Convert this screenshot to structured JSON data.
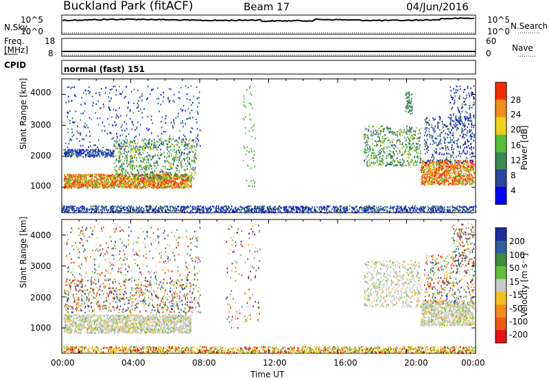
{
  "header": {
    "station": "Buckland Park (fitACF)",
    "beam": "Beam 17",
    "date": "04/Jun/2016"
  },
  "noise_panel": {
    "left_label": "N.Sky",
    "right_label": "N.Search",
    "left_ticks": [
      "10^5",
      "10^0"
    ],
    "right_ticks": [
      "10^5",
      "10^0"
    ]
  },
  "freq_panel": {
    "left_label_line1": "Freq.",
    "left_label_line2": "[MHz]",
    "right_label": "Nave",
    "left_ticks": [
      "18",
      "8"
    ],
    "right_ticks": [
      "60",
      "0"
    ]
  },
  "cpid": {
    "label": "CPID",
    "value": "normal (fast) 151"
  },
  "power_panel": {
    "ylabel": "Slant Range [km]",
    "yticks": [
      "4000",
      "3000",
      "2000",
      "1000"
    ],
    "colorbar_label": "Power [dB]",
    "colorbar_ticks": [
      "28",
      "24",
      "20",
      "16",
      "12",
      "8",
      "4"
    ],
    "colors": [
      "#0000ff",
      "#27479e",
      "#3a8a52",
      "#56bf3b",
      "#f0d21b",
      "#f38c17",
      "#ff2a00"
    ]
  },
  "velocity_panel": {
    "ylabel": "Slant Range [km]",
    "yticks": [
      "4000",
      "3000",
      "2000",
      "1000"
    ],
    "colorbar_label": "Velocity [m s⁻¹]",
    "colorbar_ticks": [
      "200",
      "100",
      "50",
      "15",
      "-15",
      "-50",
      "-100",
      "-200"
    ],
    "colors": [
      "#1a2e9e",
      "#2f5fa0",
      "#3e8a3e",
      "#5fbf3c",
      "#c8c8c8",
      "#f5c21a",
      "#f58a18",
      "#f05a12",
      "#e81010"
    ]
  },
  "xaxis": {
    "label": "Time UT",
    "ticks": [
      "00:00",
      "04:00",
      "08:00",
      "12:00",
      "16:00",
      "20:00",
      "00:00"
    ]
  },
  "chart_data": {
    "type": "heatmap",
    "x_range_hours": [
      0,
      24
    ],
    "y_range_km": [
      180,
      4500
    ],
    "power_scale_db": [
      0,
      30
    ],
    "velocity_scale_ms": [
      -200,
      200
    ],
    "panels": [
      "N.Sky / N.Search",
      "Freq. / Nave",
      "CPID",
      "Power [dB]",
      "Velocity [m s⁻¹]"
    ]
  }
}
